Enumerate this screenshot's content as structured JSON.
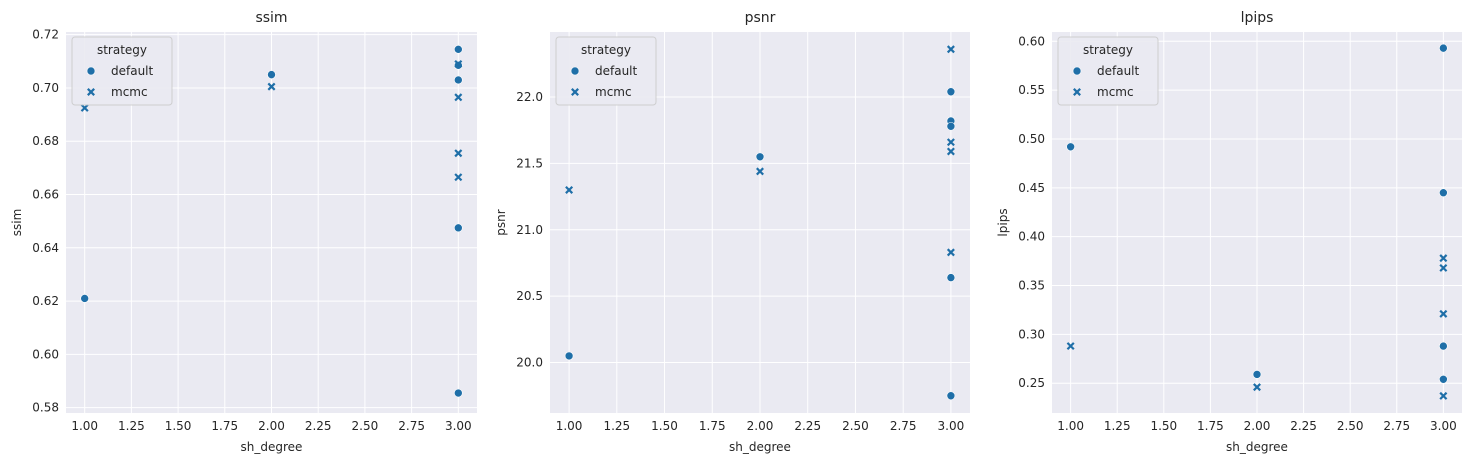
{
  "colors": {
    "marker": "#1f6fa8"
  },
  "chart_data": [
    {
      "type": "scatter",
      "title": "ssim",
      "xlabel": "sh_degree",
      "ylabel": "ssim",
      "xlim": [
        0.9,
        3.1
      ],
      "ylim": [
        0.578,
        0.721
      ],
      "xticks": [
        1.0,
        1.25,
        1.5,
        1.75,
        2.0,
        2.25,
        2.5,
        2.75,
        3.0
      ],
      "xtick_labels": [
        "1.00",
        "1.25",
        "1.50",
        "1.75",
        "2.00",
        "2.25",
        "2.50",
        "2.75",
        "3.00"
      ],
      "yticks": [
        0.58,
        0.6,
        0.62,
        0.64,
        0.66,
        0.68,
        0.7,
        0.72
      ],
      "ytick_labels": [
        "0.58",
        "0.60",
        "0.62",
        "0.64",
        "0.66",
        "0.68",
        "0.70",
        "0.72"
      ],
      "legend": {
        "title": "strategy",
        "entries": [
          "default",
          "mcmc"
        ],
        "placement": "top-left"
      },
      "series": [
        {
          "name": "default",
          "marker": "circle",
          "x": [
            1.0,
            2.0,
            3.0,
            3.0,
            3.0,
            3.0,
            3.0
          ],
          "y": [
            0.621,
            0.705,
            0.7145,
            0.7085,
            0.703,
            0.6475,
            0.5855
          ]
        },
        {
          "name": "mcmc",
          "marker": "x",
          "x": [
            1.0,
            2.0,
            3.0,
            3.0,
            3.0,
            3.0
          ],
          "y": [
            0.6925,
            0.7005,
            0.709,
            0.6965,
            0.6755,
            0.6665
          ]
        }
      ]
    },
    {
      "type": "scatter",
      "title": "psnr",
      "xlabel": "sh_degree",
      "ylabel": "psnr",
      "xlim": [
        0.9,
        3.1
      ],
      "ylim": [
        19.62,
        22.49
      ],
      "xticks": [
        1.0,
        1.25,
        1.5,
        1.75,
        2.0,
        2.25,
        2.5,
        2.75,
        3.0
      ],
      "xtick_labels": [
        "1.00",
        "1.25",
        "1.50",
        "1.75",
        "2.00",
        "2.25",
        "2.50",
        "2.75",
        "3.00"
      ],
      "yticks": [
        20.0,
        20.5,
        21.0,
        21.5,
        22.0
      ],
      "ytick_labels": [
        "20.0",
        "20.5",
        "21.0",
        "21.5",
        "22.0"
      ],
      "legend": {
        "title": "strategy",
        "entries": [
          "default",
          "mcmc"
        ],
        "placement": "top-left"
      },
      "series": [
        {
          "name": "default",
          "marker": "circle",
          "x": [
            1.0,
            2.0,
            3.0,
            3.0,
            3.0,
            3.0,
            3.0
          ],
          "y": [
            20.05,
            21.55,
            22.04,
            21.82,
            21.78,
            20.64,
            19.75
          ]
        },
        {
          "name": "mcmc",
          "marker": "x",
          "x": [
            1.0,
            2.0,
            3.0,
            3.0,
            3.0,
            3.0
          ],
          "y": [
            21.3,
            21.44,
            22.36,
            21.66,
            21.59,
            20.83
          ]
        }
      ]
    },
    {
      "type": "scatter",
      "title": "lpips",
      "xlabel": "sh_degree",
      "ylabel": "lpips",
      "xlim": [
        0.9,
        3.1
      ],
      "ylim": [
        0.2195,
        0.6095
      ],
      "xticks": [
        1.0,
        1.25,
        1.5,
        1.75,
        2.0,
        2.25,
        2.5,
        2.75,
        3.0
      ],
      "xtick_labels": [
        "1.00",
        "1.25",
        "1.50",
        "1.75",
        "2.00",
        "2.25",
        "2.50",
        "2.75",
        "3.00"
      ],
      "yticks": [
        0.25,
        0.3,
        0.35,
        0.4,
        0.45,
        0.5,
        0.55,
        0.6
      ],
      "ytick_labels": [
        "0.25",
        "0.30",
        "0.35",
        "0.40",
        "0.45",
        "0.50",
        "0.55",
        "0.60"
      ],
      "legend": {
        "title": "strategy",
        "entries": [
          "default",
          "mcmc"
        ],
        "placement": "top-left"
      },
      "series": [
        {
          "name": "default",
          "marker": "circle",
          "x": [
            1.0,
            2.0,
            3.0,
            3.0,
            3.0,
            3.0
          ],
          "y": [
            0.492,
            0.259,
            0.593,
            0.445,
            0.288,
            0.254
          ]
        },
        {
          "name": "mcmc",
          "marker": "x",
          "x": [
            1.0,
            2.0,
            3.0,
            3.0,
            3.0,
            3.0
          ],
          "y": [
            0.288,
            0.246,
            0.378,
            0.368,
            0.321,
            0.237
          ]
        }
      ]
    }
  ]
}
